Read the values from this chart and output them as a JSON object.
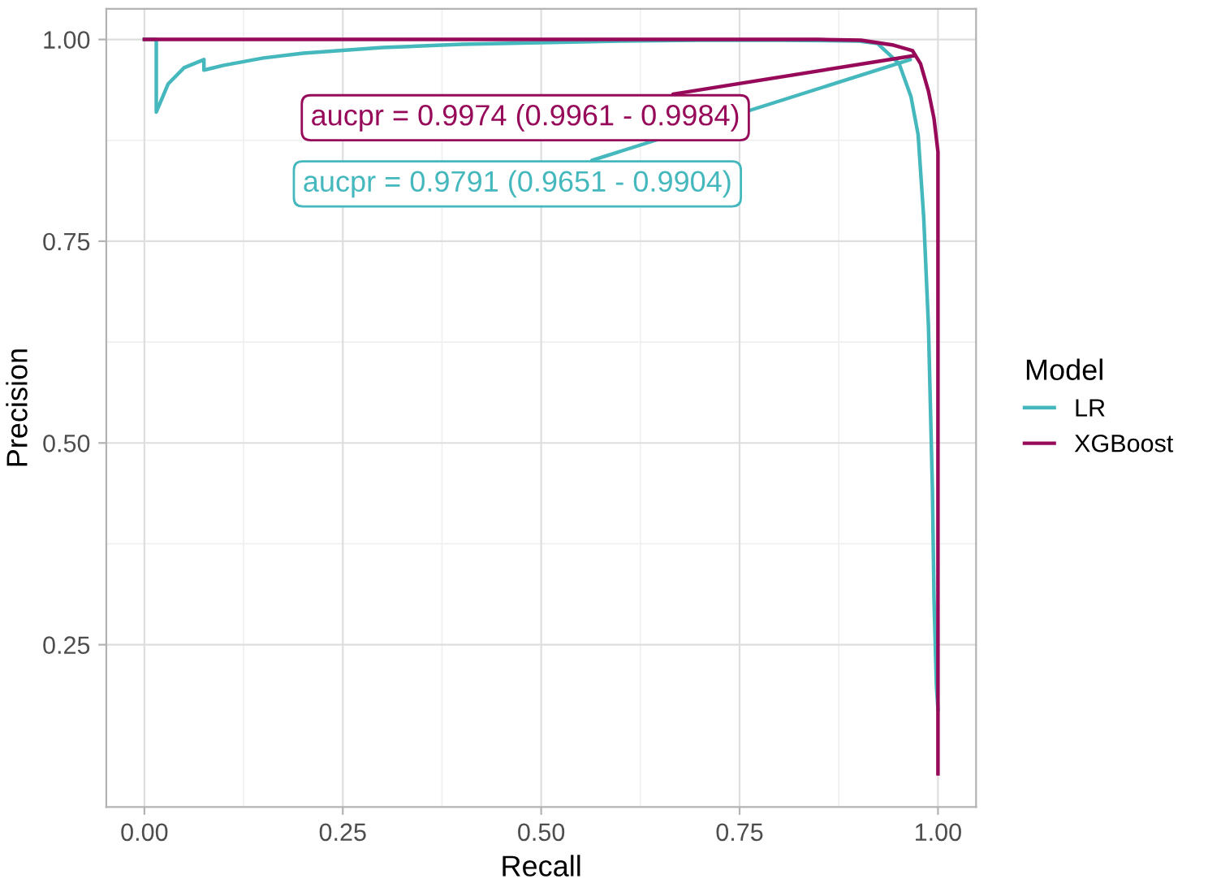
{
  "chart_data": {
    "type": "line",
    "xlabel": "Recall",
    "ylabel": "Precision",
    "legend_title": "Model",
    "legend": "right",
    "grid": true,
    "xlim": [
      -0.048,
      1.048
    ],
    "ylim": [
      0.049,
      1.038
    ],
    "xticks": [
      {
        "value": 0,
        "label": "0.00"
      },
      {
        "value": 0.25,
        "label": "0.25"
      },
      {
        "value": 0.5,
        "label": "0.50"
      },
      {
        "value": 0.75,
        "label": "0.75"
      },
      {
        "value": 1,
        "label": "1.00"
      }
    ],
    "yticks": [
      {
        "value": 0.25,
        "label": "0.25"
      },
      {
        "value": 0.5,
        "label": "0.50"
      },
      {
        "value": 0.75,
        "label": "0.75"
      },
      {
        "value": 1,
        "label": "1.00"
      }
    ],
    "series": [
      {
        "name": "LR",
        "color": "#45b8bd",
        "x": [
          0,
          0.015,
          0.015,
          0.03,
          0.05,
          0.075,
          0.075,
          0.1,
          0.15,
          0.2,
          0.3,
          0.4,
          0.5,
          0.6,
          0.7,
          0.8,
          0.9,
          0.924,
          0.951,
          0.966,
          0.975,
          0.982,
          0.988,
          0.993,
          0.995,
          0.998,
          1.0
        ],
        "values": [
          1,
          1,
          0.91,
          0.945,
          0.965,
          0.975,
          0.962,
          0.968,
          0.977,
          0.983,
          0.99,
          0.994,
          0.996,
          0.998,
          0.999,
          0.999,
          0.998,
          0.995,
          0.97,
          0.929,
          0.882,
          0.78,
          0.645,
          0.443,
          0.307,
          0.2,
          0.17
        ]
      },
      {
        "name": "XGBoost",
        "color": "#970a5a",
        "x": [
          0,
          0.85,
          0.903,
          0.944,
          0.968,
          0.978,
          0.988,
          0.995,
          1.0,
          1.0
        ],
        "values": [
          1,
          1,
          0.999,
          0.993,
          0.986,
          0.97,
          0.936,
          0.902,
          0.861,
          0.09
        ]
      }
    ],
    "annotations": [
      {
        "text": "aucpr = 0.9791 (0.9651 - 0.9904)",
        "x": 0.965,
        "y": 0.975
      },
      {
        "text": "aucpr = 0.9974 (0.9961 - 0.9984)",
        "x": 0.97,
        "y": 0.98
      }
    ]
  }
}
